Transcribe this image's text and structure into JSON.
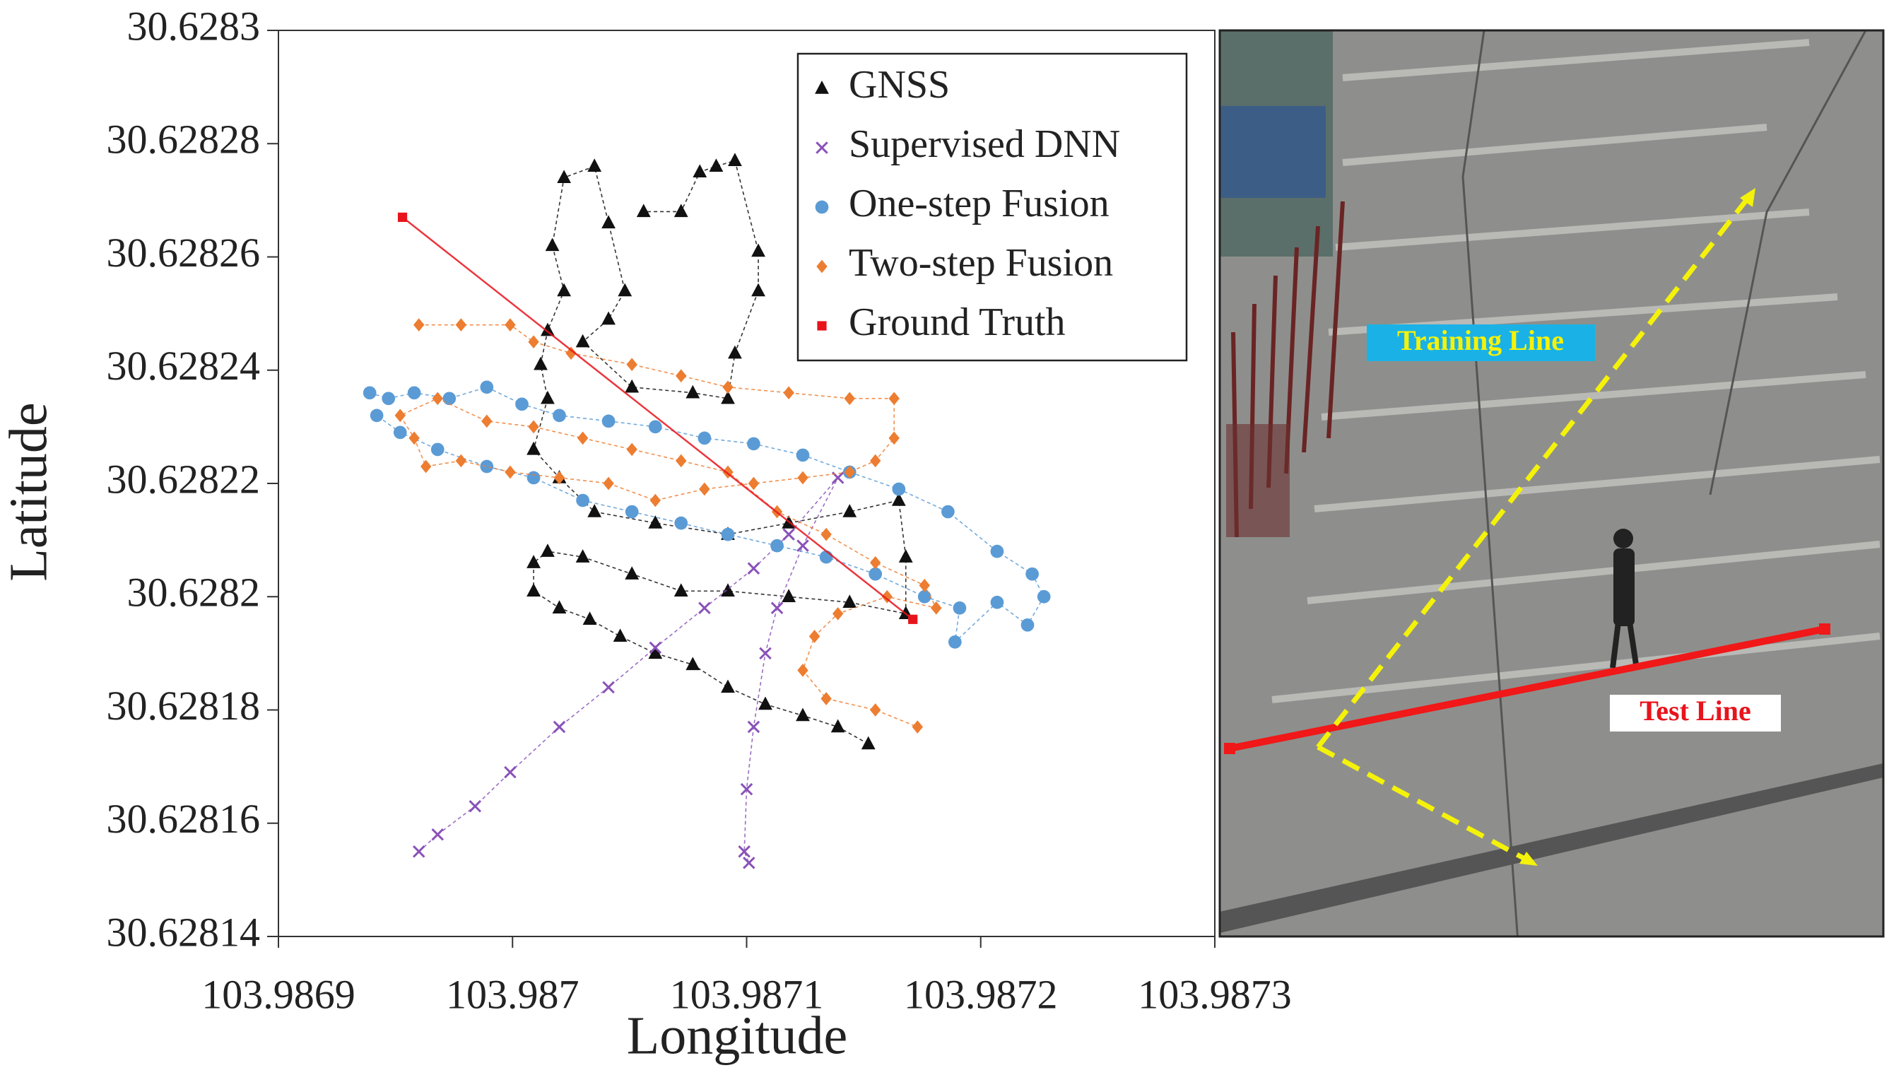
{
  "chart_data": {
    "type": "scatter",
    "xlabel": "Longitude",
    "ylabel": "Latitude",
    "xlim": [
      103.9869,
      103.9873
    ],
    "xticks": [
      103.9869,
      103.987,
      103.9871,
      103.9872,
      103.9873
    ],
    "ylim": [
      30.62814,
      30.6283
    ],
    "yticks": [
      30.62814,
      30.62816,
      30.62818,
      30.6282,
      30.62822,
      30.62824,
      30.62826,
      30.62828,
      30.6283
    ],
    "legend": "upper right",
    "series": [
      {
        "name": "GNSS",
        "color": "#111111",
        "marker": "triangle",
        "linestyle": "dashed",
        "x": [
          103.987152,
          103.987139,
          103.987124,
          103.987108,
          103.987092,
          103.987077,
          103.987061,
          103.987046,
          103.987033,
          103.98702,
          103.987009,
          103.987009,
          103.987015,
          103.98703,
          103.987051,
          103.987072,
          103.987092,
          103.987118,
          103.987144,
          103.987168,
          103.987168,
          103.987165,
          103.987144,
          103.987118,
          103.987092,
          103.987061,
          103.987035,
          103.98702,
          103.987009,
          103.987015,
          103.987012,
          103.987015,
          103.987022,
          103.987017,
          103.987022,
          103.987035,
          103.987041,
          103.987048,
          103.987041,
          103.98703,
          103.987051,
          103.987077,
          103.987092,
          103.987095,
          103.987105,
          103.987105,
          103.987095,
          103.987087,
          103.98708,
          103.987072,
          103.987056
        ],
        "values": [
          30.628174,
          30.628177,
          30.628179,
          30.628181,
          30.628184,
          30.628188,
          30.62819,
          30.628193,
          30.628196,
          30.628198,
          30.628201,
          30.628206,
          30.628208,
          30.628207,
          30.628204,
          30.628201,
          30.628201,
          30.6282,
          30.628199,
          30.628197,
          30.628207,
          30.628217,
          30.628215,
          30.628213,
          30.628211,
          30.628213,
          30.628215,
          30.628221,
          30.628226,
          30.628235,
          30.628241,
          30.628247,
          30.628254,
          30.628262,
          30.628274,
          30.628276,
          30.628266,
          30.628254,
          30.628249,
          30.628245,
          30.628237,
          30.628236,
          30.628235,
          30.628243,
          30.628254,
          30.628261,
          30.628277,
          30.628276,
          30.628275,
          30.628268,
          30.628268
        ]
      },
      {
        "name": "Supervised DNN",
        "color": "#8a52b8",
        "marker": "x",
        "linestyle": "dashed",
        "x": [
          103.98696,
          103.986968,
          103.986984,
          103.986999,
          103.98702,
          103.987041,
          103.987061,
          103.987082,
          103.987103,
          103.987118,
          103.987139,
          103.987124,
          103.987113,
          103.987108,
          103.987103,
          103.9871,
          103.987099,
          103.987101
        ],
        "values": [
          30.628155,
          30.628158,
          30.628163,
          30.628169,
          30.628177,
          30.628184,
          30.628191,
          30.628198,
          30.628205,
          30.628211,
          30.628221,
          30.628209,
          30.628198,
          30.62819,
          30.628177,
          30.628166,
          30.628155,
          30.628153
        ]
      },
      {
        "name": "One-step Fusion",
        "color": "#5b9bd5",
        "marker": "circle",
        "linestyle": "dashed",
        "x": [
          103.986939,
          103.986947,
          103.986958,
          103.986973,
          103.986989,
          103.987004,
          103.98702,
          103.987041,
          103.987061,
          103.987082,
          103.987103,
          103.987124,
          103.987144,
          103.987165,
          103.987186,
          103.987207,
          103.987222,
          103.987227,
          103.98722,
          103.987207,
          103.987189,
          103.987191,
          103.987176,
          103.987155,
          103.987134,
          103.987113,
          103.987092,
          103.987072,
          103.987051,
          103.98703,
          103.987009,
          103.986989,
          103.986968,
          103.986952,
          103.986942
        ],
        "values": [
          30.628236,
          30.628235,
          30.628236,
          30.628235,
          30.628237,
          30.628234,
          30.628232,
          30.628231,
          30.62823,
          30.628228,
          30.628227,
          30.628225,
          30.628222,
          30.628219,
          30.628215,
          30.628208,
          30.628204,
          30.6282,
          30.628195,
          30.628199,
          30.628192,
          30.628198,
          30.6282,
          30.628204,
          30.628207,
          30.628209,
          30.628211,
          30.628213,
          30.628215,
          30.628217,
          30.628221,
          30.628223,
          30.628226,
          30.628229,
          30.628232
        ]
      },
      {
        "name": "Two-step Fusion",
        "color": "#ed7d31",
        "marker": "diamond",
        "linestyle": "dashed",
        "x": [
          103.98696,
          103.986978,
          103.986999,
          103.987009,
          103.987025,
          103.987051,
          103.987072,
          103.987092,
          103.987118,
          103.987144,
          103.987163,
          103.987163,
          103.987155,
          103.987144,
          103.987124,
          103.987103,
          103.987082,
          103.987061,
          103.987041,
          103.98702,
          103.986999,
          103.986978,
          103.986963,
          103.986958,
          103.986952,
          103.986968,
          103.986989,
          103.987009,
          103.98703,
          103.987051,
          103.987072,
          103.987092,
          103.987113,
          103.987134,
          103.987155,
          103.987176,
          103.987181,
          103.98716,
          103.987139,
          103.987129,
          103.987124,
          103.987134,
          103.987155,
          103.987173
        ],
        "values": [
          30.628248,
          30.628248,
          30.628248,
          30.628245,
          30.628243,
          30.628241,
          30.628239,
          30.628237,
          30.628236,
          30.628235,
          30.628235,
          30.628228,
          30.628224,
          30.628222,
          30.628221,
          30.62822,
          30.628219,
          30.628217,
          30.62822,
          30.628221,
          30.628222,
          30.628224,
          30.628223,
          30.628228,
          30.628232,
          30.628235,
          30.628231,
          30.62823,
          30.628228,
          30.628226,
          30.628224,
          30.628222,
          30.628215,
          30.628211,
          30.628206,
          30.628202,
          30.628198,
          30.6282,
          30.628197,
          30.628193,
          30.628187,
          30.628182,
          30.62818,
          30.628177
        ]
      },
      {
        "name": "Ground Truth",
        "color": "#e8141c",
        "marker": "square",
        "linestyle": "solid",
        "x": [
          103.986953,
          103.987171
        ],
        "values": [
          30.628267,
          30.628196
        ]
      }
    ]
  },
  "photo": {
    "training_label": "Training Line",
    "test_label": "Test Line"
  }
}
